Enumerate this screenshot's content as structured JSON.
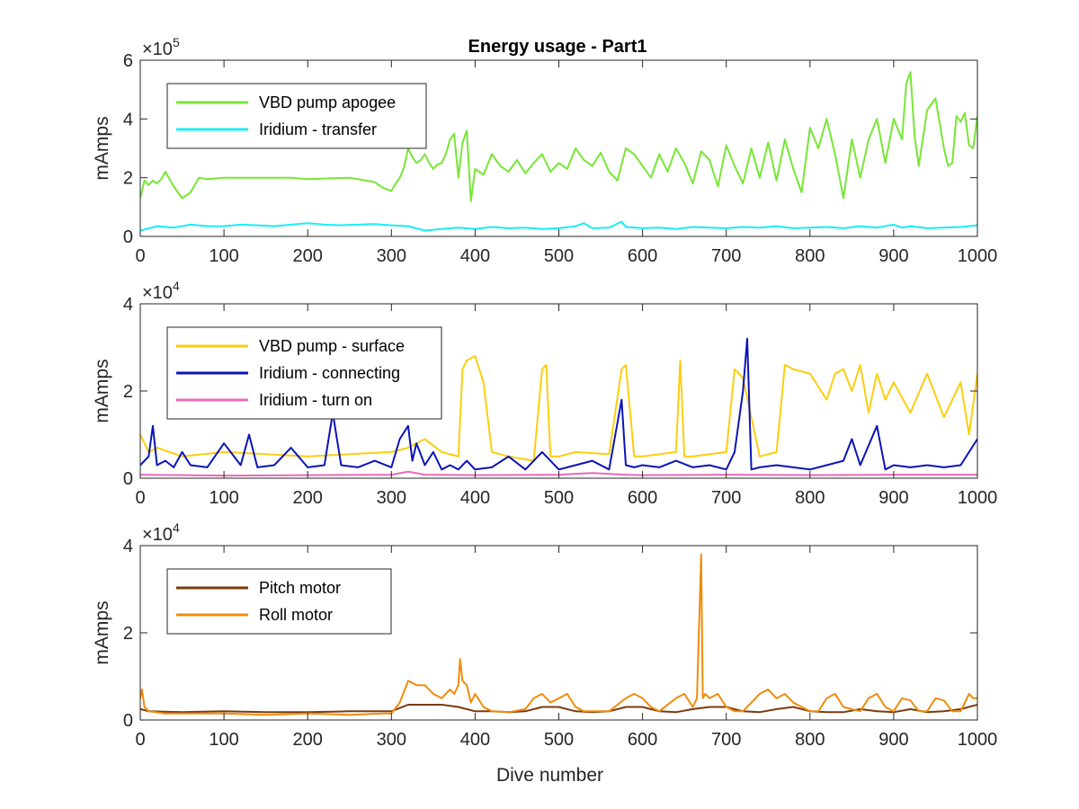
{
  "title": "Energy usage - Part1",
  "chart_data": [
    {
      "type": "line",
      "title": "Energy usage - Part1",
      "xlabel": "",
      "ylabel": "mAmps",
      "xlim": [
        0,
        1000
      ],
      "ylim": [
        0,
        600000
      ],
      "xticks": [
        0,
        100,
        200,
        300,
        400,
        500,
        600,
        700,
        800,
        900,
        1000
      ],
      "yticks": [
        0,
        200000,
        400000,
        600000
      ],
      "ytick_labels": [
        "0",
        "2",
        "4",
        "6"
      ],
      "exponent_base": "×10",
      "exponent_power": "5",
      "grid": false,
      "legend_position": "top-left",
      "series": [
        {
          "name": "VBD pump apogee",
          "color": "#77e635",
          "x": [
            0,
            5,
            10,
            15,
            20,
            25,
            30,
            40,
            50,
            60,
            70,
            80,
            100,
            150,
            180,
            200,
            250,
            280,
            290,
            300,
            305,
            310,
            315,
            320,
            325,
            330,
            335,
            340,
            345,
            350,
            355,
            360,
            365,
            370,
            375,
            380,
            385,
            390,
            395,
            400,
            410,
            420,
            430,
            440,
            450,
            460,
            470,
            480,
            490,
            500,
            510,
            520,
            530,
            540,
            550,
            560,
            570,
            580,
            590,
            600,
            610,
            620,
            630,
            640,
            650,
            660,
            670,
            680,
            690,
            700,
            710,
            720,
            730,
            740,
            750,
            760,
            770,
            780,
            790,
            800,
            810,
            820,
            830,
            840,
            850,
            860,
            870,
            880,
            890,
            900,
            910,
            915,
            920,
            925,
            930,
            940,
            950,
            960,
            965,
            970,
            975,
            980,
            985,
            990,
            995,
            1000
          ],
          "y": [
            130000,
            190000,
            175000,
            190000,
            180000,
            195000,
            220000,
            170000,
            130000,
            150000,
            200000,
            195000,
            200000,
            200000,
            200000,
            195000,
            200000,
            185000,
            165000,
            155000,
            180000,
            200000,
            235000,
            300000,
            270000,
            250000,
            260000,
            280000,
            250000,
            230000,
            245000,
            250000,
            280000,
            330000,
            350000,
            200000,
            320000,
            360000,
            120000,
            230000,
            210000,
            280000,
            240000,
            220000,
            260000,
            215000,
            250000,
            280000,
            220000,
            250000,
            230000,
            300000,
            260000,
            240000,
            285000,
            220000,
            190000,
            300000,
            280000,
            240000,
            200000,
            280000,
            220000,
            300000,
            250000,
            180000,
            290000,
            260000,
            170000,
            310000,
            240000,
            180000,
            300000,
            200000,
            320000,
            190000,
            330000,
            230000,
            150000,
            370000,
            300000,
            400000,
            280000,
            130000,
            330000,
            200000,
            330000,
            400000,
            250000,
            400000,
            330000,
            520000,
            560000,
            340000,
            240000,
            430000,
            470000,
            300000,
            240000,
            250000,
            410000,
            390000,
            420000,
            310000,
            300000,
            410000
          ]
        },
        {
          "name": "Iridium - transfer",
          "color": "#1aecf4",
          "x": [
            0,
            20,
            40,
            60,
            80,
            100,
            120,
            140,
            160,
            180,
            200,
            220,
            240,
            260,
            280,
            300,
            320,
            340,
            360,
            380,
            400,
            420,
            440,
            460,
            480,
            500,
            520,
            530,
            540,
            560,
            575,
            580,
            600,
            620,
            640,
            660,
            680,
            700,
            720,
            740,
            760,
            780,
            800,
            820,
            840,
            860,
            880,
            900,
            910,
            920,
            940,
            960,
            980,
            1000
          ],
          "y": [
            20000,
            35000,
            30000,
            40000,
            35000,
            35000,
            40000,
            38000,
            35000,
            40000,
            45000,
            40000,
            38000,
            40000,
            42000,
            38000,
            35000,
            20000,
            25000,
            30000,
            25000,
            32000,
            28000,
            30000,
            25000,
            28000,
            35000,
            45000,
            28000,
            30000,
            50000,
            32000,
            28000,
            30000,
            25000,
            32000,
            30000,
            28000,
            32000,
            30000,
            35000,
            28000,
            30000,
            32000,
            28000,
            35000,
            30000,
            40000,
            30000,
            35000,
            28000,
            30000,
            32000,
            38000
          ]
        }
      ]
    },
    {
      "type": "line",
      "xlabel": "",
      "ylabel": "mAmps",
      "xlim": [
        0,
        1000
      ],
      "ylim": [
        0,
        40000
      ],
      "xticks": [
        0,
        100,
        200,
        300,
        400,
        500,
        600,
        700,
        800,
        900,
        1000
      ],
      "yticks": [
        0,
        20000,
        40000
      ],
      "ytick_labels": [
        "0",
        "2",
        "4"
      ],
      "exponent_base": "×10",
      "exponent_power": "4",
      "grid": false,
      "legend_position": "top-left",
      "series": [
        {
          "name": "VBD pump - surface",
          "color": "#fdcd0f",
          "x": [
            0,
            5,
            10,
            20,
            50,
            100,
            150,
            200,
            250,
            300,
            320,
            340,
            360,
            380,
            385,
            390,
            400,
            410,
            420,
            440,
            470,
            480,
            485,
            490,
            500,
            520,
            560,
            575,
            580,
            590,
            600,
            640,
            645,
            650,
            660,
            700,
            710,
            720,
            740,
            760,
            770,
            780,
            800,
            820,
            830,
            840,
            850,
            860,
            870,
            880,
            890,
            900,
            920,
            940,
            960,
            980,
            990,
            1000
          ],
          "y": [
            10000,
            8000,
            6000,
            7000,
            5000,
            6000,
            5500,
            5000,
            5500,
            6000,
            7000,
            9000,
            6000,
            5000,
            25000,
            27000,
            28000,
            22000,
            6000,
            5000,
            4000,
            25000,
            26000,
            5000,
            5000,
            6000,
            5500,
            25000,
            26000,
            5000,
            5000,
            6000,
            27000,
            5000,
            5000,
            6000,
            25000,
            23000,
            5000,
            6000,
            26000,
            25000,
            24000,
            18000,
            24000,
            25000,
            20000,
            26000,
            15000,
            24000,
            18000,
            22000,
            15000,
            24000,
            14000,
            22000,
            10000,
            24000
          ]
        },
        {
          "name": "Iridium - connecting",
          "color": "#0a14b6",
          "x": [
            0,
            10,
            15,
            20,
            30,
            40,
            50,
            60,
            80,
            100,
            120,
            130,
            140,
            160,
            180,
            200,
            220,
            230,
            240,
            260,
            280,
            300,
            310,
            320,
            325,
            330,
            340,
            350,
            360,
            370,
            380,
            390,
            400,
            420,
            440,
            460,
            480,
            500,
            520,
            540,
            560,
            575,
            580,
            590,
            600,
            620,
            640,
            660,
            680,
            700,
            710,
            720,
            725,
            730,
            740,
            760,
            780,
            800,
            820,
            840,
            850,
            860,
            880,
            890,
            900,
            920,
            940,
            960,
            980,
            1000
          ],
          "y": [
            3000,
            5000,
            12000,
            3000,
            4000,
            2500,
            6000,
            3000,
            2500,
            8000,
            3000,
            10000,
            2500,
            3000,
            7000,
            2500,
            3000,
            15000,
            3000,
            2500,
            4000,
            2500,
            9000,
            12000,
            4000,
            8000,
            3000,
            6000,
            2000,
            3000,
            2000,
            4000,
            2000,
            2500,
            5000,
            2000,
            6000,
            2000,
            3000,
            4000,
            2000,
            18000,
            3000,
            2500,
            3000,
            2500,
            4000,
            2500,
            3000,
            2000,
            6000,
            20000,
            32000,
            2000,
            2500,
            3000,
            2500,
            2000,
            3000,
            4000,
            9000,
            3000,
            12000,
            2000,
            3000,
            2500,
            3000,
            2500,
            3000,
            9000
          ]
        },
        {
          "name": "Iridium - turn on",
          "color": "#e869b8",
          "x": [
            0,
            100,
            200,
            300,
            320,
            340,
            400,
            500,
            540,
            580,
            600,
            700,
            800,
            900,
            1000
          ],
          "y": [
            800,
            600,
            700,
            800,
            1500,
            800,
            700,
            800,
            1200,
            800,
            700,
            800,
            700,
            800,
            800
          ]
        }
      ]
    },
    {
      "type": "line",
      "xlabel": "Dive number",
      "ylabel": "mAmps",
      "xlim": [
        0,
        1000
      ],
      "ylim": [
        0,
        40000
      ],
      "xticks": [
        0,
        100,
        200,
        300,
        400,
        500,
        600,
        700,
        800,
        900,
        1000
      ],
      "yticks": [
        0,
        20000,
        40000
      ],
      "ytick_labels": [
        "0",
        "2",
        "4"
      ],
      "exponent_base": "×10",
      "exponent_power": "4",
      "grid": false,
      "legend_position": "top-left",
      "series": [
        {
          "name": "Pitch motor",
          "color": "#7a3b0e",
          "x": [
            0,
            10,
            50,
            100,
            150,
            200,
            250,
            300,
            320,
            340,
            360,
            380,
            400,
            420,
            440,
            460,
            480,
            500,
            520,
            540,
            560,
            580,
            600,
            620,
            640,
            660,
            680,
            700,
            720,
            740,
            760,
            780,
            800,
            820,
            840,
            860,
            880,
            900,
            920,
            940,
            960,
            980,
            1000
          ],
          "y": [
            2500,
            2000,
            1800,
            2000,
            1800,
            1800,
            2000,
            2000,
            3500,
            3500,
            3500,
            3000,
            2000,
            2000,
            1800,
            2000,
            3000,
            3000,
            2000,
            1800,
            2000,
            3000,
            3000,
            2000,
            1800,
            2500,
            3000,
            3000,
            2000,
            1800,
            2500,
            3000,
            2000,
            1800,
            1800,
            2500,
            2000,
            1800,
            2500,
            1800,
            2000,
            2500,
            3500
          ]
        },
        {
          "name": "Roll motor",
          "color": "#f08c0b",
          "x": [
            0,
            2,
            5,
            10,
            30,
            60,
            100,
            150,
            200,
            250,
            290,
            300,
            310,
            320,
            330,
            340,
            350,
            360,
            370,
            375,
            380,
            382,
            385,
            390,
            395,
            400,
            410,
            420,
            440,
            460,
            470,
            480,
            490,
            500,
            510,
            520,
            530,
            540,
            560,
            580,
            590,
            600,
            610,
            620,
            640,
            650,
            660,
            665,
            670,
            672,
            675,
            680,
            690,
            700,
            710,
            720,
            740,
            750,
            760,
            770,
            780,
            800,
            810,
            820,
            830,
            840,
            860,
            870,
            880,
            890,
            900,
            910,
            920,
            930,
            940,
            950,
            960,
            970,
            980,
            990,
            995,
            1000
          ],
          "y": [
            5000,
            7000,
            3000,
            2000,
            1500,
            1500,
            1500,
            1200,
            1500,
            1200,
            1500,
            1500,
            4000,
            9000,
            8000,
            8000,
            6000,
            5000,
            7000,
            6000,
            8000,
            14000,
            9000,
            8000,
            4000,
            6000,
            3000,
            2000,
            1800,
            2500,
            5000,
            6000,
            4000,
            5000,
            6000,
            3000,
            2000,
            2000,
            2000,
            5000,
            6000,
            5000,
            3000,
            2000,
            5000,
            6000,
            3000,
            5000,
            38000,
            5000,
            6000,
            5000,
            6000,
            3000,
            2000,
            2000,
            6000,
            7000,
            5000,
            6000,
            4000,
            2000,
            2000,
            5000,
            6000,
            3000,
            2000,
            5000,
            6000,
            3000,
            2000,
            5000,
            4500,
            2000,
            2000,
            5000,
            4500,
            2000,
            2000,
            6000,
            5000,
            5000
          ]
        }
      ]
    }
  ]
}
